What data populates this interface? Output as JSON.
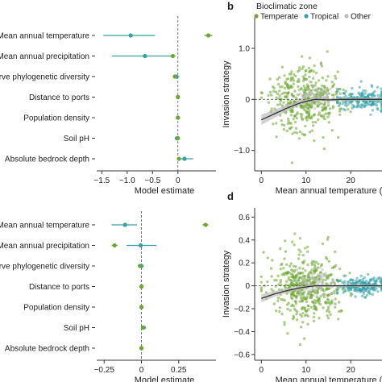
{
  "colors": {
    "Temperate": "#6ea632",
    "Tropical": "#35a0a8",
    "Other": "#b9b9b9",
    "trend": "#333333",
    "band": "#bdbdbd"
  },
  "chart_data": [
    {
      "id": "a",
      "panel_label": "",
      "type": "forest",
      "xlabel": "Model estimate",
      "xticks": [
        -1.5,
        -1.0,
        -0.5,
        0
      ],
      "xtick_labels": [
        "−1.5",
        "−1.0",
        "−0.5",
        "0"
      ],
      "xlim": [
        -1.6,
        0.75
      ],
      "categories": [
        "Mean annual temperature",
        "Mean annual precipitation",
        "rve phylogenetic diversity",
        "Distance to ports",
        "Population density",
        "Soil pH",
        "Absolute bedrock depth"
      ],
      "series": [
        {
          "zone": "Tropical",
          "estimate": [
            -0.93,
            -0.65,
            -0.03,
            0.0,
            0.0,
            -0.02,
            0.13
          ],
          "ci_low": [
            -1.47,
            -1.3,
            -0.08,
            -0.02,
            -0.02,
            -0.06,
            0.02
          ],
          "ci_high": [
            -0.45,
            -0.05,
            0.03,
            0.02,
            0.02,
            0.02,
            0.3
          ]
        },
        {
          "zone": "Temperate",
          "estimate": [
            0.6,
            -0.1,
            -0.06,
            0.0,
            0.0,
            0.0,
            0.02
          ],
          "ci_low": [
            0.52,
            -0.16,
            -0.1,
            -0.01,
            -0.01,
            -0.02,
            0.0
          ],
          "ci_high": [
            0.68,
            -0.05,
            -0.02,
            0.01,
            0.01,
            0.02,
            0.05
          ]
        }
      ]
    },
    {
      "id": "b",
      "panel_label": "b",
      "type": "scatter",
      "legend_title": "Bioclimatic zone",
      "legend": [
        "Temperate",
        "Tropical",
        "Other"
      ],
      "legend_position": "top",
      "xlabel": "Mean annual temperature (°C)",
      "ylabel": "Invasion strategy",
      "xlim": [
        -1.5,
        27
      ],
      "ylim": [
        -1.4,
        1.6
      ],
      "xticks": [
        0,
        10,
        20
      ],
      "yticks": [
        -1.0,
        0,
        1.0
      ],
      "ytick_labels": [
        "−1.0",
        "0",
        "1.0"
      ],
      "clouds": [
        {
          "zone": "Temperate",
          "x_range": [
            0,
            20
          ],
          "center": [
            10,
            0.0
          ],
          "spread": [
            4.0,
            0.3
          ],
          "n": 420
        },
        {
          "zone": "Tropical",
          "x_range": [
            17,
            27
          ],
          "center": [
            23,
            0.0
          ],
          "spread": [
            3.0,
            0.1
          ],
          "n": 220
        },
        {
          "zone": "Other",
          "x_range": [
            8,
            16
          ],
          "center": [
            12,
            0.05
          ],
          "spread": [
            2.0,
            0.12
          ],
          "n": 60
        }
      ],
      "trend": {
        "x": [
          0,
          3,
          6,
          9,
          12,
          15,
          18,
          21,
          24,
          27
        ],
        "y": [
          -0.4,
          -0.28,
          -0.16,
          -0.06,
          0.0,
          -0.01,
          0.0,
          0.0,
          0.0,
          0.0
        ],
        "band": [
          0.1,
          0.08,
          0.06,
          0.04,
          0.03,
          0.03,
          0.03,
          0.03,
          0.03,
          0.03
        ]
      }
    },
    {
      "id": "c",
      "panel_label": "",
      "type": "forest",
      "xlabel": "Model estimate",
      "xticks": [
        -0.25,
        0,
        0.25
      ],
      "xtick_labels": [
        "−0.25",
        "0",
        "0.25"
      ],
      "xlim": [
        -0.3,
        0.5
      ],
      "categories": [
        "Mean annual temperature",
        "Mean annual precipitation",
        "rve phylogenetic diversity",
        "Distance to ports",
        "Population density",
        "Soil pH",
        "Absolute bedrock depth"
      ],
      "series": [
        {
          "zone": "Tropical",
          "estimate": [
            -0.11,
            -0.005,
            0.0,
            0.0,
            0.0,
            0.015,
            0.0
          ],
          "ci_low": [
            -0.2,
            -0.1,
            -0.01,
            -0.005,
            -0.005,
            0.0,
            -0.01
          ],
          "ci_high": [
            -0.03,
            0.1,
            0.01,
            0.005,
            0.005,
            0.03,
            0.01
          ]
        },
        {
          "zone": "Temperate",
          "estimate": [
            0.43,
            -0.18,
            -0.01,
            0.0,
            0.0,
            0.01,
            0.0
          ],
          "ci_low": [
            0.41,
            -0.2,
            -0.015,
            -0.003,
            -0.003,
            0.005,
            -0.005
          ],
          "ci_high": [
            0.45,
            -0.16,
            -0.005,
            0.003,
            0.003,
            0.015,
            0.005
          ]
        }
      ]
    },
    {
      "id": "d",
      "panel_label": "d",
      "type": "scatter",
      "xlabel": "Mean annual temperature (°C)",
      "ylabel": "Invasion strategy",
      "xlim": [
        -1.5,
        27
      ],
      "ylim": [
        -0.65,
        0.68
      ],
      "xticks": [
        0,
        10,
        20
      ],
      "yticks": [
        -0.6,
        -0.4,
        -0.2,
        0,
        0.2,
        0.4,
        0.6
      ],
      "ytick_labels": [
        "−0.6",
        "−0.4",
        "−0.2",
        "0",
        "0.2",
        "0.4",
        "0.6"
      ],
      "clouds": [
        {
          "zone": "Temperate",
          "x_range": [
            0,
            20
          ],
          "center": [
            10,
            0.0
          ],
          "spread": [
            4.0,
            0.15
          ],
          "n": 480
        },
        {
          "zone": "Tropical",
          "x_range": [
            17,
            27
          ],
          "center": [
            23,
            0.0
          ],
          "spread": [
            3.0,
            0.04
          ],
          "n": 220
        },
        {
          "zone": "Other",
          "x_range": [
            8,
            16
          ],
          "center": [
            12,
            0.02
          ],
          "spread": [
            2.0,
            0.06
          ],
          "n": 70
        }
      ],
      "trend": {
        "x": [
          0,
          3,
          6,
          9,
          12,
          15,
          18,
          21,
          24,
          27
        ],
        "y": [
          -0.11,
          -0.07,
          -0.04,
          -0.015,
          0.0,
          0.0,
          0.0,
          0.0,
          0.0,
          0.0
        ],
        "band": [
          0.035,
          0.025,
          0.018,
          0.012,
          0.01,
          0.01,
          0.01,
          0.01,
          0.01,
          0.01
        ]
      }
    }
  ]
}
